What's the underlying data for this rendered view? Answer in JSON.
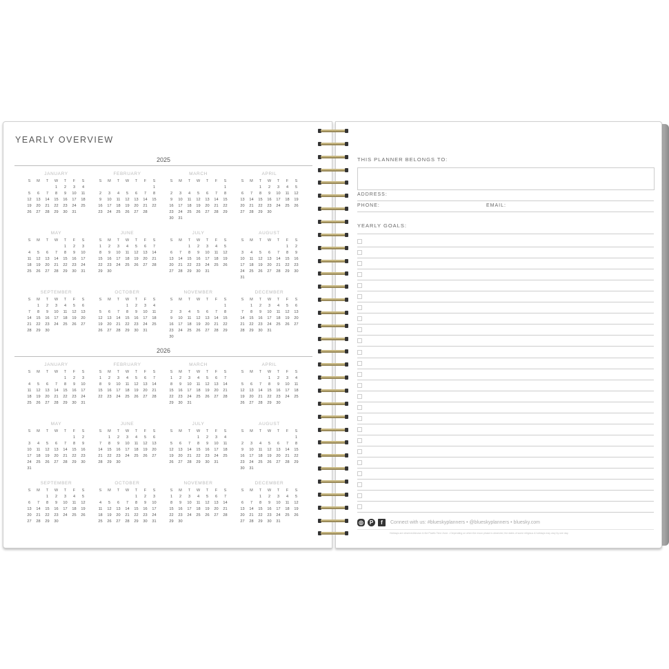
{
  "left_page": {
    "title": "YEARLY OVERVIEW",
    "weekdays": [
      "S",
      "M",
      "T",
      "W",
      "T",
      "F",
      "S"
    ],
    "years": [
      {
        "year": "2025",
        "months": [
          {
            "name": "JANUARY",
            "start": 3,
            "days": 31
          },
          {
            "name": "FEBRUARY",
            "start": 6,
            "days": 28
          },
          {
            "name": "MARCH",
            "start": 6,
            "days": 31
          },
          {
            "name": "APRIL",
            "start": 2,
            "days": 30
          },
          {
            "name": "MAY",
            "start": 4,
            "days": 31
          },
          {
            "name": "JUNE",
            "start": 0,
            "days": 30
          },
          {
            "name": "JULY",
            "start": 2,
            "days": 31
          },
          {
            "name": "AUGUST",
            "start": 5,
            "days": 31
          },
          {
            "name": "SEPTEMBER",
            "start": 1,
            "days": 30
          },
          {
            "name": "OCTOBER",
            "start": 3,
            "days": 31
          },
          {
            "name": "NOVEMBER",
            "start": 6,
            "days": 30
          },
          {
            "name": "DECEMBER",
            "start": 1,
            "days": 31
          }
        ]
      },
      {
        "year": "2026",
        "months": [
          {
            "name": "JANUARY",
            "start": 4,
            "days": 31
          },
          {
            "name": "FEBRUARY",
            "start": 0,
            "days": 28
          },
          {
            "name": "MARCH",
            "start": 0,
            "days": 31
          },
          {
            "name": "APRIL",
            "start": 3,
            "days": 30
          },
          {
            "name": "MAY",
            "start": 5,
            "days": 31
          },
          {
            "name": "JUNE",
            "start": 1,
            "days": 30
          },
          {
            "name": "JULY",
            "start": 3,
            "days": 31
          },
          {
            "name": "AUGUST",
            "start": 6,
            "days": 31
          },
          {
            "name": "SEPTEMBER",
            "start": 2,
            "days": 30
          },
          {
            "name": "OCTOBER",
            "start": 4,
            "days": 31
          },
          {
            "name": "NOVEMBER",
            "start": 0,
            "days": 30
          },
          {
            "name": "DECEMBER",
            "start": 2,
            "days": 31
          }
        ]
      }
    ]
  },
  "right_page": {
    "belongs_label": "THIS PLANNER BELONGS TO:",
    "address_label": "ADDRESS:",
    "phone_label": "PHONE:",
    "email_label": "EMAIL:",
    "goals_label": "YEARLY GOALS:",
    "goal_count": 25,
    "social_icons": [
      "instagram-icon",
      "pinterest-icon",
      "facebook-icon"
    ],
    "connect_text": "Connect with us: #blueskyplanners • @blueskyplanners • bluesky.com",
    "fine_print": "Holidays are observed/shown in the Pacific Time Zone. • Depending on when the moon phase is observed, the dates of some religious & holidays may vary by one day."
  },
  "colors": {
    "wire": "#c8b882",
    "edge": "#8a8a8a"
  }
}
